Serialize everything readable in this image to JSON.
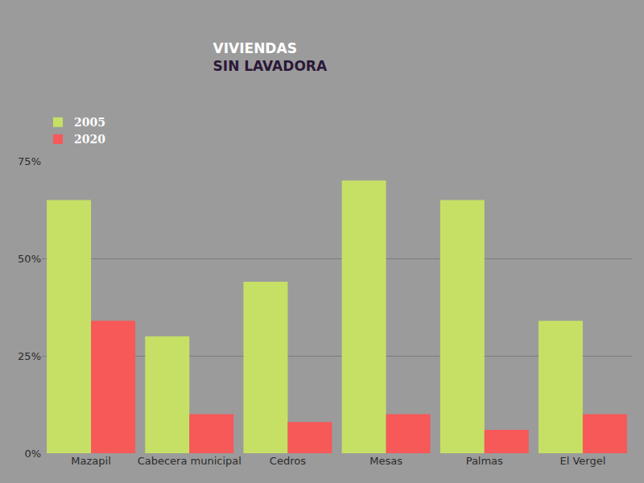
{
  "chart_data": {
    "type": "bar",
    "title": "VIVIENDAS\nSIN LAVADORA",
    "categories": [
      "Mazapil",
      "Cabecera municipal",
      "Cedros",
      "Mesas",
      "Palmas",
      "El Vergel"
    ],
    "series": [
      {
        "name": "2005",
        "color": "#c6e065",
        "values": [
          65,
          30,
          44,
          70,
          65,
          34
        ]
      },
      {
        "name": "2020",
        "color": "#f75858",
        "values": [
          34,
          10,
          8,
          10,
          6,
          10
        ]
      }
    ],
    "ylim": [
      0,
      75
    ],
    "yticks": [
      {
        "value": 0,
        "label": "0%"
      },
      {
        "value": 25,
        "label": "25%"
      },
      {
        "value": 50,
        "label": "50%"
      },
      {
        "value": 75,
        "label": "75%"
      }
    ],
    "grid": true,
    "legend": "top left"
  }
}
